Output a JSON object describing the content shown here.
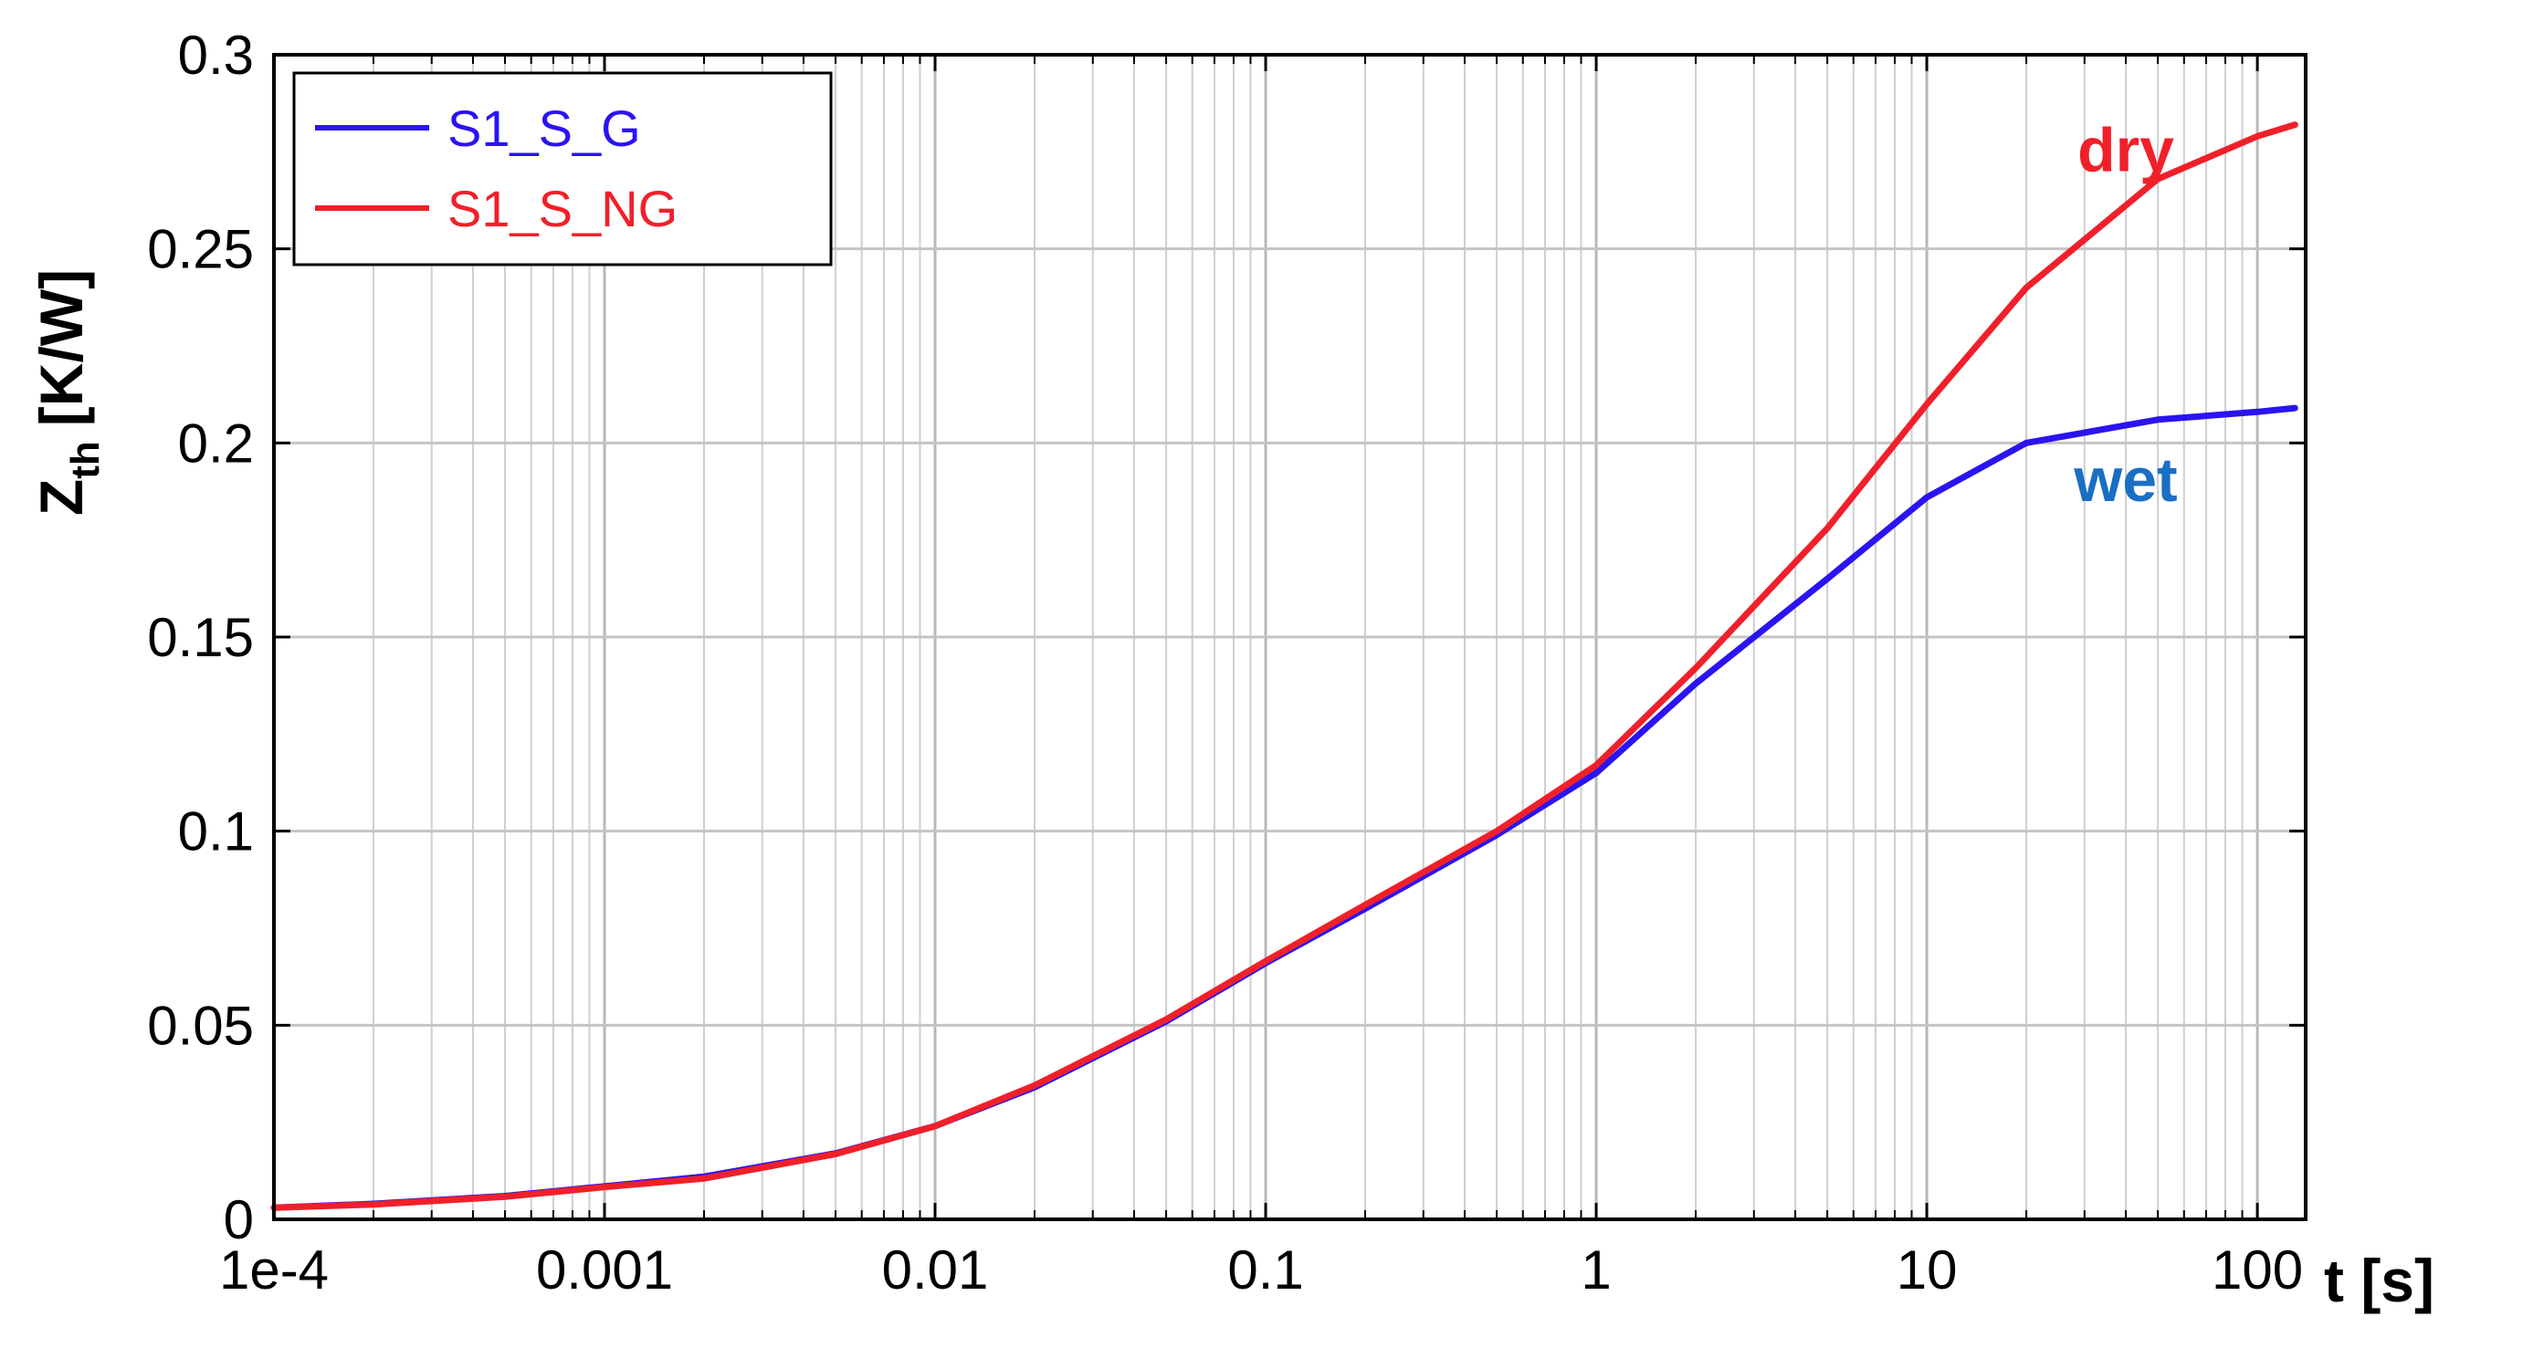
{
  "chart_data": {
    "type": "line",
    "xscale": "log",
    "xlim": [
      0.0001,
      140
    ],
    "ylim": [
      0,
      0.3
    ],
    "grid": true,
    "legend_position": "top-left",
    "xlabel": "t [s]",
    "ylabel_main": "Z",
    "ylabel_sub": "th",
    "ylabel_unit": "[K/W]",
    "xticks": [
      {
        "value": 0.0001,
        "label": "1e-4"
      },
      {
        "value": 0.001,
        "label": "0.001"
      },
      {
        "value": 0.01,
        "label": "0.01"
      },
      {
        "value": 0.1,
        "label": "0.1"
      },
      {
        "value": 1,
        "label": "1"
      },
      {
        "value": 10,
        "label": "10"
      },
      {
        "value": 100,
        "label": "100"
      }
    ],
    "yticks": [
      {
        "value": 0,
        "label": "0"
      },
      {
        "value": 0.05,
        "label": "0.05"
      },
      {
        "value": 0.1,
        "label": "0.1"
      },
      {
        "value": 0.15,
        "label": "0.15"
      },
      {
        "value": 0.2,
        "label": "0.2"
      },
      {
        "value": 0.25,
        "label": "0.25"
      },
      {
        "value": 0.3,
        "label": "0.3"
      }
    ],
    "series": [
      {
        "name": "S1_S_G",
        "color": "#2A14F0",
        "points": [
          [
            0.0001,
            0.003
          ],
          [
            0.0002,
            0.004
          ],
          [
            0.0005,
            0.006
          ],
          [
            0.001,
            0.0085
          ],
          [
            0.002,
            0.011
          ],
          [
            0.005,
            0.017
          ],
          [
            0.01,
            0.024
          ],
          [
            0.02,
            0.034
          ],
          [
            0.05,
            0.051
          ],
          [
            0.1,
            0.066
          ],
          [
            0.2,
            0.08
          ],
          [
            0.5,
            0.099
          ],
          [
            1,
            0.115
          ],
          [
            2,
            0.138
          ],
          [
            5,
            0.165
          ],
          [
            10,
            0.186
          ],
          [
            20,
            0.2
          ],
          [
            50,
            0.206
          ],
          [
            100,
            0.208
          ],
          [
            130,
            0.209
          ]
        ]
      },
      {
        "name": "S1_S_NG",
        "color": "#F0202A",
        "points": [
          [
            0.0001,
            0.003
          ],
          [
            0.0002,
            0.0038
          ],
          [
            0.0005,
            0.0058
          ],
          [
            0.001,
            0.0083
          ],
          [
            0.002,
            0.0105
          ],
          [
            0.005,
            0.0168
          ],
          [
            0.01,
            0.024
          ],
          [
            0.02,
            0.0345
          ],
          [
            0.05,
            0.0515
          ],
          [
            0.1,
            0.0665
          ],
          [
            0.2,
            0.081
          ],
          [
            0.5,
            0.1
          ],
          [
            1,
            0.117
          ],
          [
            2,
            0.142
          ],
          [
            5,
            0.178
          ],
          [
            10,
            0.21
          ],
          [
            20,
            0.24
          ],
          [
            50,
            0.268
          ],
          [
            100,
            0.279
          ],
          [
            130,
            0.282
          ]
        ]
      }
    ],
    "annotations": [
      {
        "text": "dry",
        "color": "#F0202A",
        "x": 40,
        "y": 0.27
      },
      {
        "text": "wet",
        "color": "#1A6FC4",
        "x": 40,
        "y": 0.185
      }
    ]
  }
}
